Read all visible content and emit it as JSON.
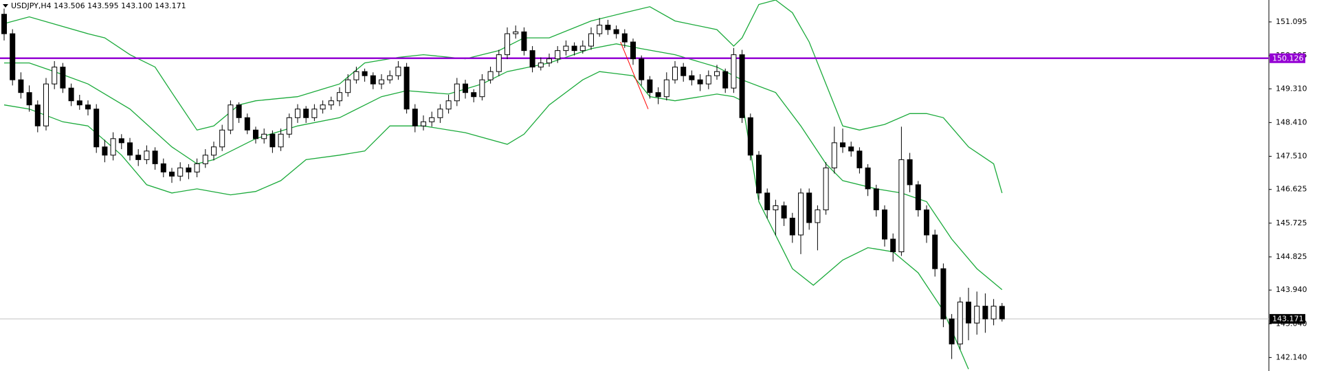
{
  "chart_data": {
    "type": "candlestick",
    "title": "USDJPY,H4 143.506 143.595 143.100 143.171",
    "open": [
      151.3,
      150.78,
      149.55,
      149.21,
      148.88,
      148.32,
      149.44,
      149.89,
      149.33,
      148.99,
      148.88,
      148.77,
      147.76,
      147.54,
      147.98,
      147.87,
      147.54,
      147.42,
      147.65,
      147.31,
      147.09,
      146.98,
      147.2,
      147.09,
      147.31,
      147.54,
      147.76,
      148.21,
      148.88,
      148.54,
      148.21,
      147.98,
      148.1,
      147.76,
      148.1,
      148.54,
      148.77,
      148.54,
      148.77,
      148.88,
      148.99,
      149.21,
      149.55,
      149.77,
      149.66,
      149.44,
      149.55,
      149.66,
      149.89,
      148.77,
      148.32,
      148.43,
      148.54,
      148.77,
      148.99,
      149.44,
      149.21,
      149.1,
      149.55,
      149.77,
      150.22,
      150.78,
      150.83,
      150.33,
      149.89,
      150.0,
      150.11,
      150.33,
      150.45,
      150.33,
      150.45,
      150.78,
      151.01,
      150.89,
      150.78,
      150.56,
      150.11,
      149.55,
      149.21,
      149.1,
      149.55,
      149.89,
      149.66,
      149.55,
      149.44,
      149.66,
      149.77,
      149.33,
      150.22,
      148.54,
      147.54,
      146.53,
      146.08,
      146.19,
      145.86,
      145.41,
      146.53,
      145.74,
      146.08,
      147.2,
      147.87,
      147.76,
      147.65,
      147.2,
      146.64,
      146.08,
      145.3,
      144.96,
      147.42,
      146.75,
      146.08,
      145.41,
      144.51,
      143.17,
      142.5,
      143.62,
      143.06,
      143.51,
      143.17,
      143.506
    ],
    "high": [
      151.45,
      150.9,
      149.75,
      149.4,
      149.0,
      149.6,
      150.05,
      150.0,
      149.45,
      149.15,
      149.0,
      148.9,
      147.95,
      148.15,
      148.1,
      148.0,
      147.7,
      147.8,
      147.75,
      147.45,
      147.2,
      147.35,
      147.3,
      147.45,
      147.7,
      147.9,
      148.35,
      149.0,
      148.95,
      148.65,
      148.3,
      148.25,
      148.2,
      148.25,
      148.65,
      148.9,
      148.85,
      148.9,
      149.0,
      149.1,
      149.35,
      149.7,
      149.9,
      149.85,
      149.75,
      149.7,
      149.8,
      150.05,
      150.0,
      148.9,
      148.6,
      148.7,
      148.9,
      149.15,
      149.6,
      149.55,
      149.3,
      149.7,
      149.9,
      150.35,
      150.95,
      151.0,
      150.95,
      150.45,
      150.15,
      150.25,
      150.45,
      150.6,
      150.55,
      150.6,
      150.95,
      151.2,
      151.15,
      151.0,
      150.9,
      150.65,
      150.2,
      149.65,
      149.35,
      149.75,
      150.05,
      150.0,
      149.8,
      149.7,
      149.8,
      149.95,
      149.85,
      150.4,
      150.35,
      148.65,
      147.65,
      146.65,
      146.35,
      146.3,
      146.0,
      146.65,
      146.65,
      146.2,
      147.35,
      148.3,
      148.25,
      147.9,
      147.75,
      147.3,
      146.75,
      146.2,
      145.45,
      148.3,
      147.6,
      146.85,
      146.2,
      145.55,
      144.65,
      143.3,
      143.75,
      144.0,
      143.9,
      143.85,
      143.7,
      143.595
    ],
    "low": [
      150.6,
      149.4,
      149.05,
      148.7,
      148.15,
      148.2,
      149.3,
      149.2,
      148.85,
      148.75,
      148.6,
      147.6,
      147.35,
      147.4,
      147.7,
      147.4,
      147.25,
      147.3,
      147.15,
      146.95,
      146.8,
      146.85,
      146.9,
      146.95,
      147.2,
      147.4,
      147.65,
      148.1,
      148.4,
      148.1,
      147.85,
      147.85,
      147.6,
      147.65,
      148.0,
      148.4,
      148.4,
      148.45,
      148.65,
      148.75,
      148.85,
      149.1,
      149.45,
      149.5,
      149.3,
      149.3,
      149.45,
      149.55,
      148.65,
      148.15,
      148.2,
      148.3,
      148.4,
      148.65,
      148.85,
      149.05,
      148.95,
      149.0,
      149.45,
      149.65,
      150.1,
      150.65,
      150.2,
      149.75,
      149.8,
      149.9,
      150.0,
      150.2,
      150.2,
      150.25,
      150.35,
      150.7,
      150.75,
      150.65,
      150.4,
      149.95,
      149.4,
      149.05,
      148.9,
      149.0,
      149.45,
      149.5,
      149.4,
      149.25,
      149.3,
      149.55,
      149.2,
      149.2,
      148.4,
      147.4,
      146.35,
      145.85,
      145.4,
      145.65,
      145.2,
      144.9,
      145.55,
      145.0,
      145.95,
      147.05,
      147.6,
      147.5,
      147.05,
      146.45,
      145.9,
      145.1,
      144.7,
      144.85,
      146.55,
      145.9,
      145.2,
      144.3,
      142.95,
      142.1,
      142.35,
      142.6,
      142.75,
      142.8,
      143.0,
      143.1
    ],
    "close": [
      150.78,
      149.55,
      149.21,
      148.88,
      148.32,
      149.44,
      149.89,
      149.33,
      148.99,
      148.88,
      148.77,
      147.76,
      147.54,
      147.98,
      147.87,
      147.54,
      147.42,
      147.65,
      147.31,
      147.09,
      146.98,
      147.2,
      147.09,
      147.31,
      147.54,
      147.76,
      148.21,
      148.88,
      148.54,
      148.21,
      147.98,
      148.1,
      147.76,
      148.1,
      148.54,
      148.77,
      148.54,
      148.77,
      148.88,
      148.99,
      149.21,
      149.55,
      149.77,
      149.66,
      149.44,
      149.55,
      149.66,
      149.89,
      148.77,
      148.32,
      148.43,
      148.54,
      148.77,
      148.99,
      149.44,
      149.21,
      149.1,
      149.55,
      149.77,
      150.22,
      150.78,
      150.83,
      150.33,
      149.89,
      150.0,
      150.11,
      150.33,
      150.45,
      150.33,
      150.45,
      150.78,
      151.01,
      150.89,
      150.78,
      150.56,
      150.11,
      149.55,
      149.21,
      149.1,
      149.55,
      149.89,
      149.66,
      149.55,
      149.44,
      149.66,
      149.77,
      149.33,
      150.22,
      148.54,
      147.54,
      146.53,
      146.08,
      146.19,
      145.86,
      145.41,
      146.53,
      145.74,
      146.08,
      147.2,
      147.87,
      147.76,
      147.65,
      147.2,
      146.64,
      146.08,
      145.3,
      144.96,
      147.42,
      146.75,
      146.08,
      145.41,
      144.51,
      143.17,
      142.5,
      143.62,
      143.06,
      143.51,
      143.17,
      143.51,
      143.171
    ],
    "up_color": "#ffffff",
    "down_color": "#000000",
    "ylim": [
      141.78,
      151.68
    ],
    "yticks": [
      151.095,
      150.195,
      {
        "value": 149.31,
        "label": "149.310"
      },
      {
        "value": 148.41,
        "label": "148.410"
      },
      {
        "value": 147.51,
        "label": "147.510"
      },
      146.625,
      145.725,
      144.825,
      {
        "value": 143.94,
        "label": "143.940"
      },
      {
        "value": 143.04,
        "label": "143.040"
      },
      {
        "value": 142.14,
        "label": "142.140"
      }
    ],
    "bands": [
      {
        "color": "#1aaa3a",
        "x": [
          0,
          3,
          10,
          12,
          15,
          18,
          20,
          23,
          25,
          28,
          30,
          35,
          40,
          43,
          47,
          50,
          55,
          59,
          62,
          65,
          70,
          74,
          77,
          80,
          85,
          87,
          88,
          90,
          92,
          94,
          96,
          98,
          100,
          102,
          105,
          108,
          110,
          112,
          115,
          118,
          119
        ],
        "values": [
          151.05,
          151.23,
          150.78,
          150.67,
          150.22,
          149.89,
          149.21,
          148.21,
          148.32,
          148.88,
          148.99,
          149.1,
          149.44,
          150.0,
          150.15,
          150.22,
          150.11,
          150.33,
          150.67,
          150.67,
          151.12,
          151.34,
          151.5,
          151.12,
          150.89,
          150.45,
          150.67,
          151.56,
          151.68,
          151.34,
          150.56,
          149.44,
          148.32,
          148.21,
          148.36,
          148.65,
          148.65,
          148.54,
          147.76,
          147.31,
          146.53
        ]
      },
      {
        "color": "#1aaa3a",
        "x": [
          0,
          3,
          6,
          10,
          15,
          20,
          23,
          25,
          30,
          35,
          40,
          45,
          48,
          53,
          57,
          60,
          65,
          70,
          73,
          76,
          80,
          85,
          87,
          88,
          92,
          95,
          98,
          100,
          104,
          107,
          110,
          113,
          116,
          119
        ],
        "values": [
          150.0,
          150.0,
          149.77,
          149.44,
          148.77,
          147.76,
          147.31,
          147.42,
          147.98,
          148.32,
          148.54,
          149.1,
          149.26,
          149.17,
          149.44,
          149.77,
          150.0,
          150.38,
          150.51,
          150.38,
          150.22,
          149.89,
          149.66,
          149.55,
          149.21,
          148.32,
          147.31,
          146.86,
          146.64,
          146.53,
          146.3,
          145.3,
          144.51,
          143.95
        ]
      },
      {
        "color": "#1aaa3a",
        "x": [
          0,
          3,
          7,
          10,
          14,
          17,
          20,
          23,
          27,
          30,
          33,
          36,
          40,
          43,
          46,
          50,
          55,
          60,
          62,
          65,
          69,
          71,
          75,
          77,
          80,
          85,
          87,
          88,
          90,
          94,
          96.5,
          100,
          103,
          106,
          109,
          112,
          115
        ],
        "values": [
          148.88,
          148.77,
          148.43,
          148.32,
          147.54,
          146.75,
          146.53,
          146.64,
          146.48,
          146.57,
          146.86,
          147.42,
          147.54,
          147.65,
          148.32,
          148.32,
          148.14,
          147.83,
          148.1,
          148.88,
          149.55,
          149.77,
          149.66,
          149.1,
          148.99,
          149.17,
          149.1,
          148.99,
          146.3,
          144.51,
          144.07,
          144.74,
          145.07,
          144.96,
          144.4,
          143.39,
          141.83
        ]
      }
    ],
    "trendline": {
      "x": [
        73.5,
        76.8
      ],
      "values": [
        150.56,
        148.77
      ],
      "color": "#ff0000"
    },
    "levels": [
      {
        "value": 150.126,
        "color": "#9400d3"
      },
      {
        "value": 143.171,
        "color": "#000000"
      }
    ]
  }
}
